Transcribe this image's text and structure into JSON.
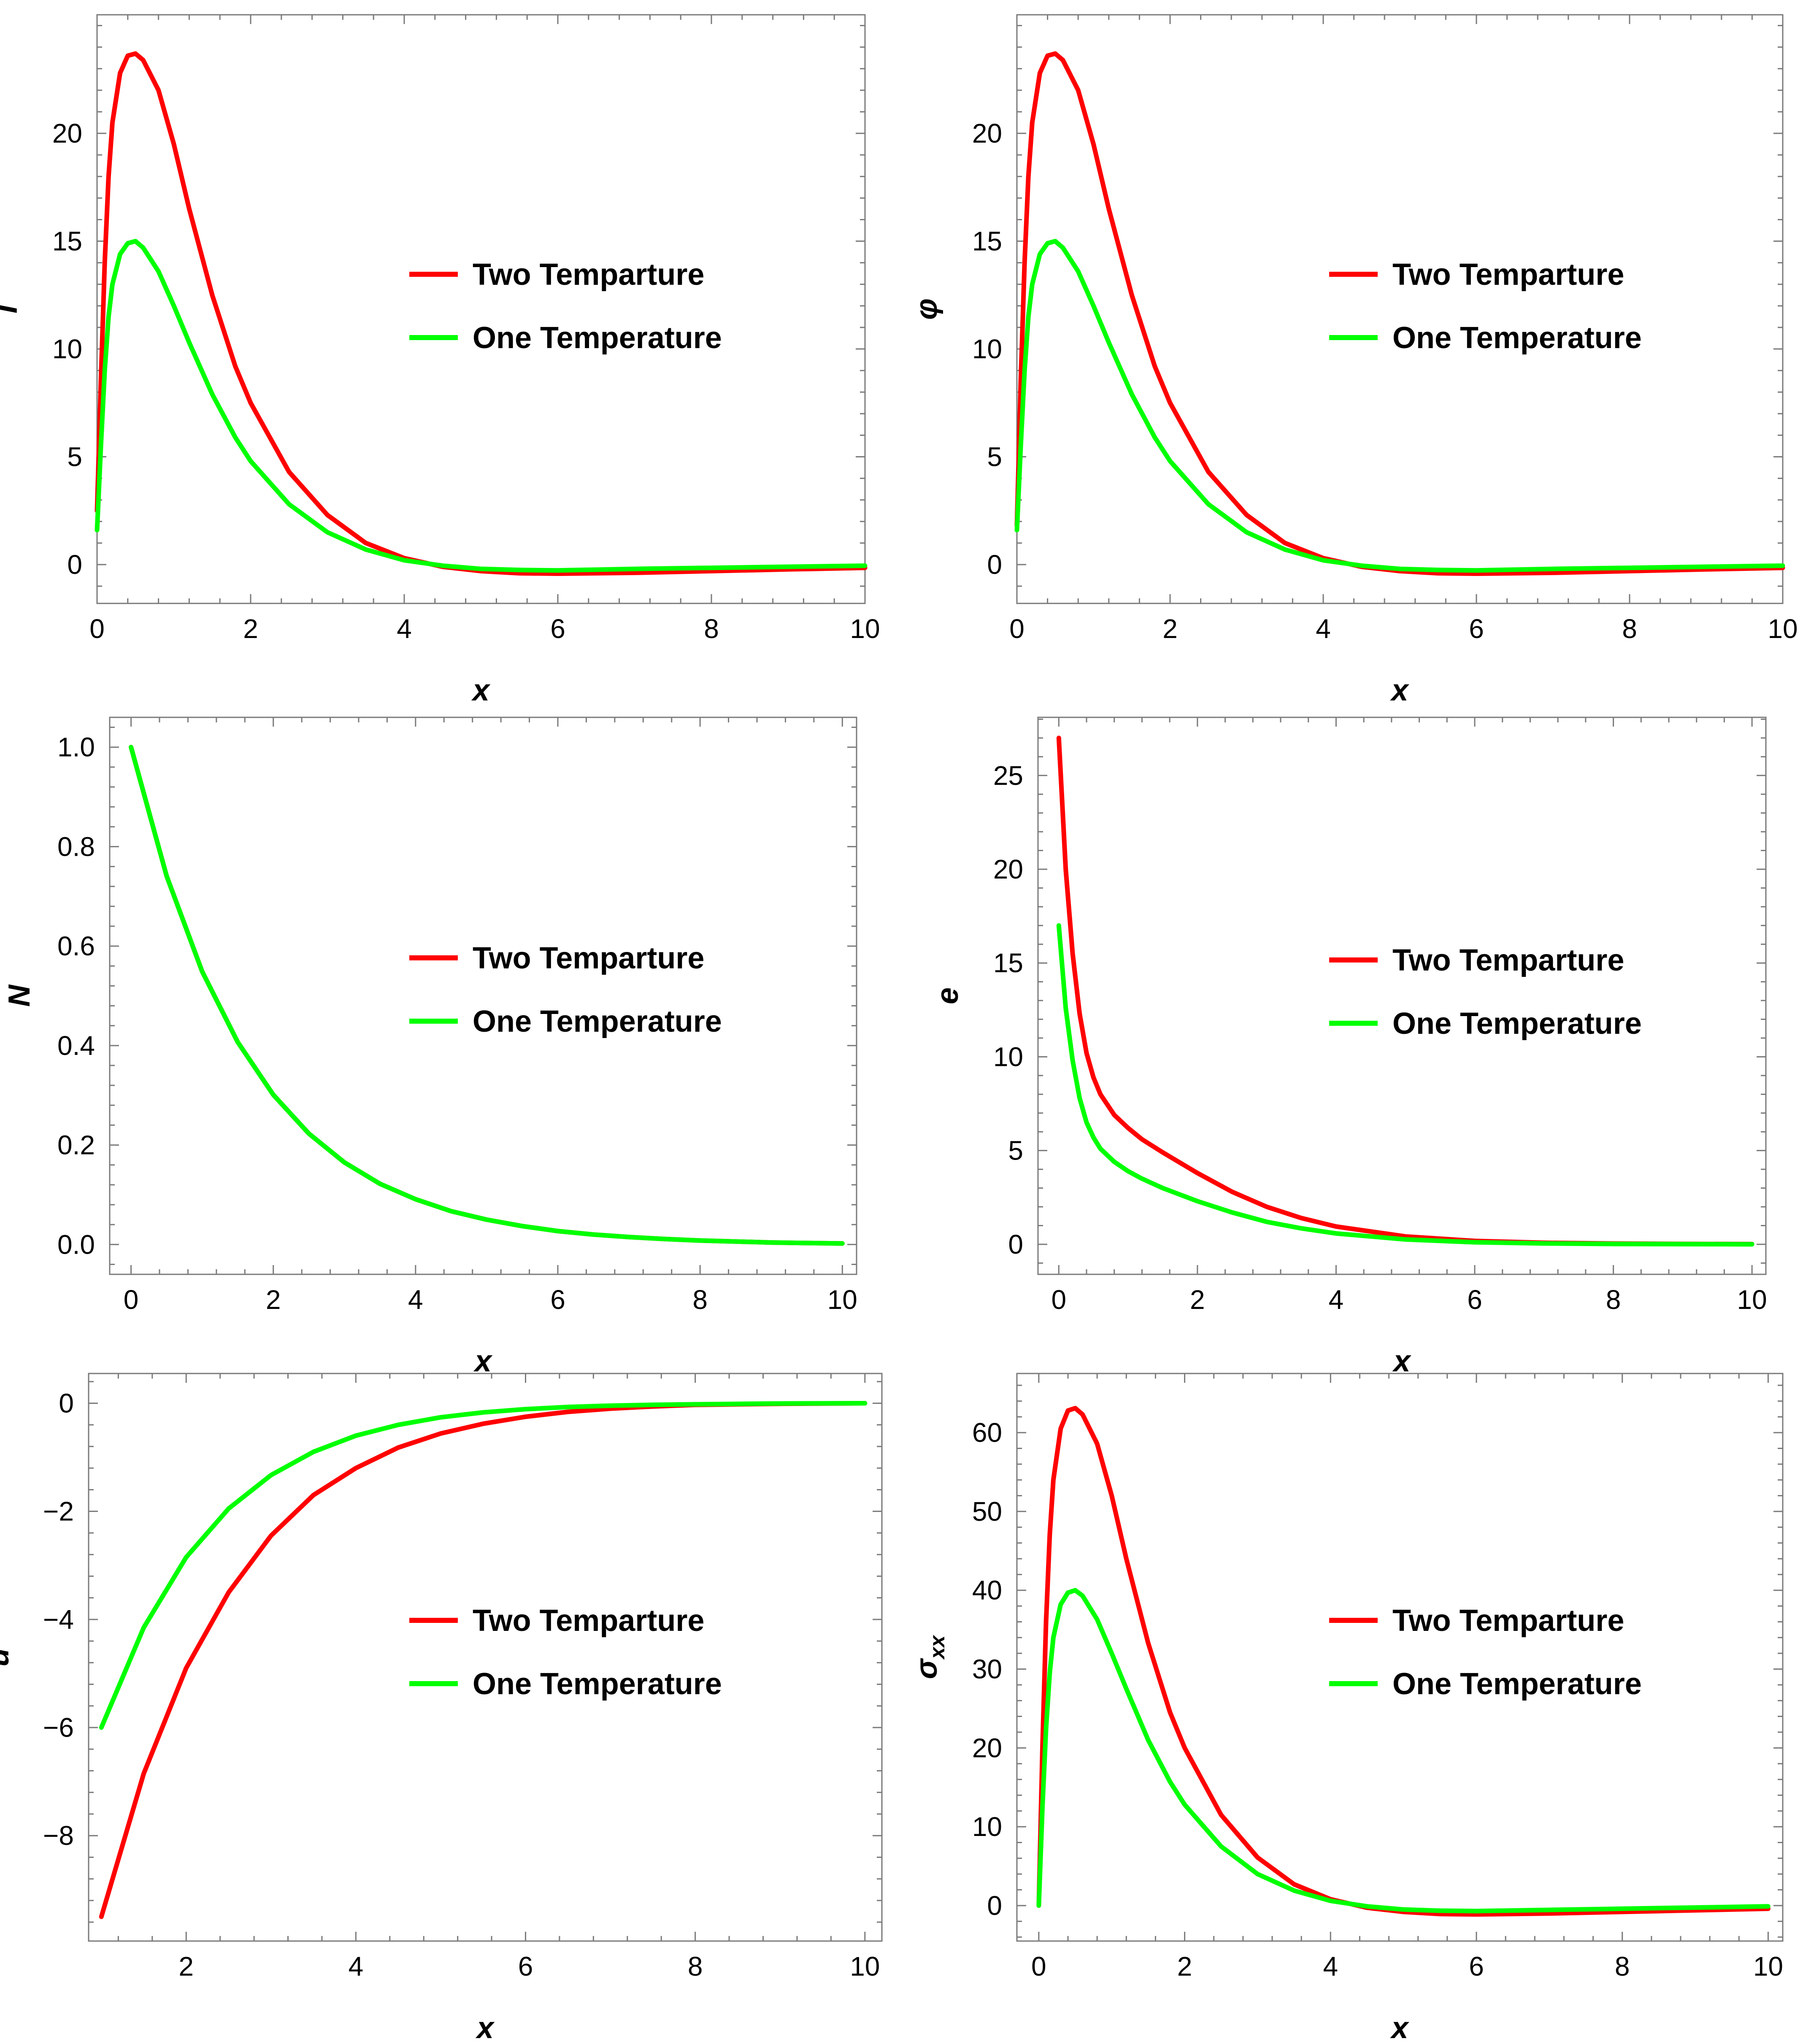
{
  "chart_data": [
    {
      "id": "T",
      "type": "line",
      "ylabel": "T",
      "ylabel_sub": "",
      "xlabel": "x",
      "xlim": [
        0,
        10
      ],
      "ylim": [
        -1.8,
        25.5
      ],
      "xticks": [
        0,
        2,
        4,
        6,
        8,
        10
      ],
      "yticks": [
        0,
        5,
        10,
        15,
        20
      ],
      "legend_position": "center-right",
      "series": [
        {
          "name": "Two Temparture",
          "color": "#ff0000",
          "x": [
            0,
            0.05,
            0.1,
            0.15,
            0.2,
            0.3,
            0.4,
            0.5,
            0.6,
            0.8,
            1,
            1.2,
            1.5,
            1.8,
            2,
            2.5,
            3,
            3.5,
            4,
            4.5,
            5,
            5.5,
            6,
            7,
            8,
            9,
            10
          ],
          "y": [
            2.5,
            8.5,
            14,
            18,
            20.5,
            22.8,
            23.6,
            23.7,
            23.4,
            22,
            19.5,
            16.5,
            12.5,
            9.2,
            7.5,
            4.3,
            2.3,
            1.0,
            0.3,
            -0.1,
            -0.3,
            -0.4,
            -0.42,
            -0.38,
            -0.3,
            -0.22,
            -0.15
          ]
        },
        {
          "name": "One Temperature",
          "color": "#00ff00",
          "x": [
            0,
            0.05,
            0.1,
            0.15,
            0.2,
            0.3,
            0.4,
            0.5,
            0.6,
            0.8,
            1,
            1.2,
            1.5,
            1.8,
            2,
            2.5,
            3,
            3.5,
            4,
            4.5,
            5,
            5.5,
            6,
            7,
            8,
            9,
            10
          ],
          "y": [
            1.6,
            5.5,
            9,
            11.5,
            13,
            14.4,
            14.9,
            15.0,
            14.7,
            13.6,
            12,
            10.3,
            7.9,
            5.9,
            4.8,
            2.8,
            1.5,
            0.7,
            0.2,
            -0.05,
            -0.2,
            -0.25,
            -0.27,
            -0.2,
            -0.15,
            -0.1,
            -0.05
          ]
        }
      ]
    },
    {
      "id": "phi",
      "type": "line",
      "ylabel": "φ",
      "ylabel_sub": "",
      "xlabel": "x",
      "xlim": [
        0,
        10
      ],
      "ylim": [
        -1.8,
        25.5
      ],
      "xticks": [
        0,
        2,
        4,
        6,
        8,
        10
      ],
      "yticks": [
        0,
        5,
        10,
        15,
        20
      ],
      "legend_position": "center-right",
      "series": [
        {
          "name": "Two Temparture",
          "color": "#ff0000",
          "x": [
            0,
            0.05,
            0.1,
            0.15,
            0.2,
            0.3,
            0.4,
            0.5,
            0.6,
            0.8,
            1,
            1.2,
            1.5,
            1.8,
            2,
            2.5,
            3,
            3.5,
            4,
            4.5,
            5,
            5.5,
            6,
            7,
            8,
            9,
            10
          ],
          "y": [
            1.8,
            8.5,
            14,
            18,
            20.5,
            22.8,
            23.6,
            23.7,
            23.4,
            22,
            19.5,
            16.5,
            12.5,
            9.2,
            7.5,
            4.3,
            2.3,
            1.0,
            0.3,
            -0.1,
            -0.3,
            -0.4,
            -0.42,
            -0.38,
            -0.3,
            -0.22,
            -0.15
          ]
        },
        {
          "name": "One Temperature",
          "color": "#00ff00",
          "x": [
            0,
            0.05,
            0.1,
            0.15,
            0.2,
            0.3,
            0.4,
            0.5,
            0.6,
            0.8,
            1,
            1.2,
            1.5,
            1.8,
            2,
            2.5,
            3,
            3.5,
            4,
            4.5,
            5,
            5.5,
            6,
            7,
            8,
            9,
            10
          ],
          "y": [
            1.6,
            5.5,
            9,
            11.5,
            13,
            14.4,
            14.9,
            15.0,
            14.7,
            13.6,
            12,
            10.3,
            7.9,
            5.9,
            4.8,
            2.8,
            1.5,
            0.7,
            0.2,
            -0.05,
            -0.2,
            -0.25,
            -0.27,
            -0.2,
            -0.15,
            -0.1,
            -0.05
          ]
        }
      ]
    },
    {
      "id": "N",
      "type": "line",
      "ylabel": "N",
      "ylabel_sub": "",
      "xlabel": "x",
      "xlim": [
        -0.3,
        10.2
      ],
      "ylim": [
        -0.06,
        1.06
      ],
      "xticks": [
        0,
        2,
        4,
        6,
        8,
        10
      ],
      "yticks": [
        0.0,
        0.2,
        0.4,
        0.6,
        0.8,
        1.0
      ],
      "legend_position": "center-right",
      "series": [
        {
          "name": "Two Temparture",
          "color": "#ff0000",
          "x": [
            0,
            0.5,
            1,
            1.5,
            2,
            2.5,
            3,
            3.5,
            4,
            4.5,
            5,
            5.5,
            6,
            6.5,
            7,
            7.5,
            8,
            8.5,
            9,
            9.5,
            10
          ],
          "y": [
            1.0,
            0.741,
            0.549,
            0.407,
            0.301,
            0.223,
            0.165,
            0.122,
            0.091,
            0.067,
            0.05,
            0.037,
            0.027,
            0.02,
            0.015,
            0.011,
            0.008,
            0.006,
            0.004,
            0.003,
            0.002
          ]
        },
        {
          "name": "One Temperature",
          "color": "#00ff00",
          "x": [
            0,
            0.5,
            1,
            1.5,
            2,
            2.5,
            3,
            3.5,
            4,
            4.5,
            5,
            5.5,
            6,
            6.5,
            7,
            7.5,
            8,
            8.5,
            9,
            9.5,
            10
          ],
          "y": [
            1.0,
            0.741,
            0.549,
            0.407,
            0.301,
            0.223,
            0.165,
            0.122,
            0.091,
            0.067,
            0.05,
            0.037,
            0.027,
            0.02,
            0.015,
            0.011,
            0.008,
            0.006,
            0.004,
            0.003,
            0.002
          ]
        }
      ]
    },
    {
      "id": "e",
      "type": "line",
      "ylabel": "e",
      "ylabel_sub": "",
      "xlabel": "x",
      "xlim": [
        -0.3,
        10.2
      ],
      "ylim": [
        -1.6,
        28.1
      ],
      "xticks": [
        0,
        2,
        4,
        6,
        8,
        10
      ],
      "yticks": [
        0,
        5,
        10,
        15,
        20,
        25
      ],
      "legend_position": "center-right",
      "series": [
        {
          "name": "Two Temparture",
          "color": "#ff0000",
          "x": [
            0,
            0.1,
            0.2,
            0.3,
            0.4,
            0.5,
            0.6,
            0.8,
            1,
            1.2,
            1.5,
            2,
            2.5,
            3,
            3.5,
            4,
            5,
            6,
            7,
            8,
            9,
            10
          ],
          "y": [
            27,
            20,
            15.5,
            12.3,
            10.2,
            8.9,
            8.0,
            6.9,
            6.2,
            5.6,
            4.9,
            3.8,
            2.8,
            2.0,
            1.4,
            0.95,
            0.42,
            0.18,
            0.08,
            0.04,
            0.02,
            0.01
          ]
        },
        {
          "name": "One Temperature",
          "color": "#00ff00",
          "x": [
            0,
            0.1,
            0.2,
            0.3,
            0.4,
            0.5,
            0.6,
            0.8,
            1,
            1.2,
            1.5,
            2,
            2.5,
            3,
            3.5,
            4,
            5,
            6,
            7,
            8,
            9,
            10
          ],
          "y": [
            17,
            12.6,
            9.8,
            7.8,
            6.5,
            5.7,
            5.1,
            4.4,
            3.9,
            3.5,
            3.0,
            2.3,
            1.7,
            1.2,
            0.85,
            0.58,
            0.26,
            0.11,
            0.05,
            0.02,
            0.01,
            0.005
          ]
        }
      ]
    },
    {
      "id": "u",
      "type": "line",
      "ylabel": "u",
      "ylabel_sub": "",
      "xlabel": "x",
      "xlim": [
        0.85,
        10.2
      ],
      "ylim": [
        -9.95,
        0.55
      ],
      "xticks": [
        2,
        4,
        6,
        8,
        10
      ],
      "yticks": [
        0,
        -2,
        -4,
        -6,
        -8
      ],
      "ytick_labels": [
        "0",
        "−2",
        "−4",
        "−6",
        "−8"
      ],
      "legend_position": "center-right",
      "series": [
        {
          "name": "Two Temparture",
          "color": "#ff0000",
          "x": [
            1,
            1.5,
            2,
            2.5,
            3,
            3.5,
            4,
            4.5,
            5,
            5.5,
            6,
            6.5,
            7,
            7.5,
            8,
            9,
            10
          ],
          "y": [
            -9.5,
            -6.85,
            -4.9,
            -3.5,
            -2.45,
            -1.7,
            -1.2,
            -0.82,
            -0.56,
            -0.38,
            -0.25,
            -0.16,
            -0.1,
            -0.06,
            -0.03,
            -0.01,
            0
          ]
        },
        {
          "name": "One Temperature",
          "color": "#00ff00",
          "x": [
            1,
            1.5,
            2,
            2.5,
            3,
            3.5,
            4,
            4.5,
            5,
            5.5,
            6,
            6.5,
            7,
            7.5,
            8,
            9,
            10
          ],
          "y": [
            -6.0,
            -4.15,
            -2.85,
            -1.95,
            -1.33,
            -0.9,
            -0.6,
            -0.4,
            -0.26,
            -0.17,
            -0.11,
            -0.07,
            -0.045,
            -0.03,
            -0.02,
            -0.005,
            0
          ]
        }
      ]
    },
    {
      "id": "sigma",
      "type": "line",
      "ylabel": "σ",
      "ylabel_sub": "xx",
      "xlabel": "x",
      "xlim": [
        -0.3,
        10.2
      ],
      "ylim": [
        -4.5,
        67.5
      ],
      "xticks": [
        0,
        2,
        4,
        6,
        8,
        10
      ],
      "yticks": [
        0,
        10,
        20,
        30,
        40,
        50,
        60
      ],
      "legend_position": "center-right",
      "series": [
        {
          "name": "Two Temparture",
          "color": "#ff0000",
          "x": [
            0,
            0.05,
            0.1,
            0.15,
            0.2,
            0.3,
            0.4,
            0.5,
            0.6,
            0.8,
            1,
            1.2,
            1.5,
            1.8,
            2,
            2.5,
            3,
            3.5,
            4,
            4.5,
            5,
            5.5,
            6,
            7,
            8,
            9,
            10
          ],
          "y": [
            0,
            20,
            36,
            47,
            54,
            60.5,
            62.8,
            63.1,
            62.3,
            58.6,
            52,
            44,
            33.3,
            24.5,
            20,
            11.5,
            6.1,
            2.7,
            0.8,
            -0.27,
            -0.8,
            -1.07,
            -1.12,
            -1.0,
            -0.8,
            -0.6,
            -0.4
          ]
        },
        {
          "name": "One Temperature",
          "color": "#00ff00",
          "x": [
            0,
            0.05,
            0.1,
            0.15,
            0.2,
            0.3,
            0.4,
            0.5,
            0.6,
            0.8,
            1,
            1.2,
            1.5,
            1.8,
            2,
            2.5,
            3,
            3.5,
            4,
            4.5,
            5,
            5.5,
            6,
            7,
            8,
            9,
            10
          ],
          "y": [
            0,
            12.5,
            22.5,
            29.5,
            34,
            38.2,
            39.7,
            40.0,
            39.3,
            36.3,
            32,
            27.5,
            21,
            15.7,
            12.8,
            7.5,
            4.0,
            1.9,
            0.6,
            -0.1,
            -0.5,
            -0.65,
            -0.7,
            -0.55,
            -0.4,
            -0.25,
            -0.1
          ]
        }
      ]
    }
  ]
}
